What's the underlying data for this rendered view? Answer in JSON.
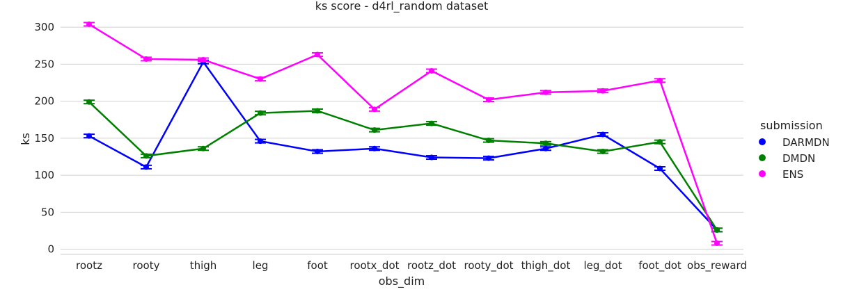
{
  "chart_data": {
    "type": "line",
    "title": "ks score - d4rl_random dataset",
    "xlabel": "obs_dim",
    "ylabel": "ks",
    "categories": [
      "rootz",
      "rooty",
      "thigh",
      "leg",
      "foot",
      "rootx_dot",
      "rootz_dot",
      "rooty_dot",
      "thigh_dot",
      "leg_dot",
      "foot_dot",
      "obs_reward"
    ],
    "yticks": [
      0,
      50,
      100,
      150,
      200,
      250,
      300
    ],
    "ylim": [
      -7,
      318
    ],
    "grid": "horizontal",
    "legend": {
      "title": "submission",
      "placement": "right"
    },
    "series": [
      {
        "name": "DARMDN",
        "color": "#0000ff",
        "values": [
          153,
          111,
          253,
          146,
          132,
          136,
          124,
          123,
          136,
          155,
          109,
          26
        ]
      },
      {
        "name": "DMDN",
        "color": "#008000",
        "values": [
          199,
          126,
          136,
          184,
          187,
          161,
          170,
          147,
          143,
          132,
          145,
          26
        ]
      },
      {
        "name": "ENS",
        "color": "#ff00ff",
        "values": [
          304,
          257,
          256,
          230,
          263,
          189,
          241,
          202,
          212,
          214,
          228,
          8
        ]
      }
    ]
  }
}
